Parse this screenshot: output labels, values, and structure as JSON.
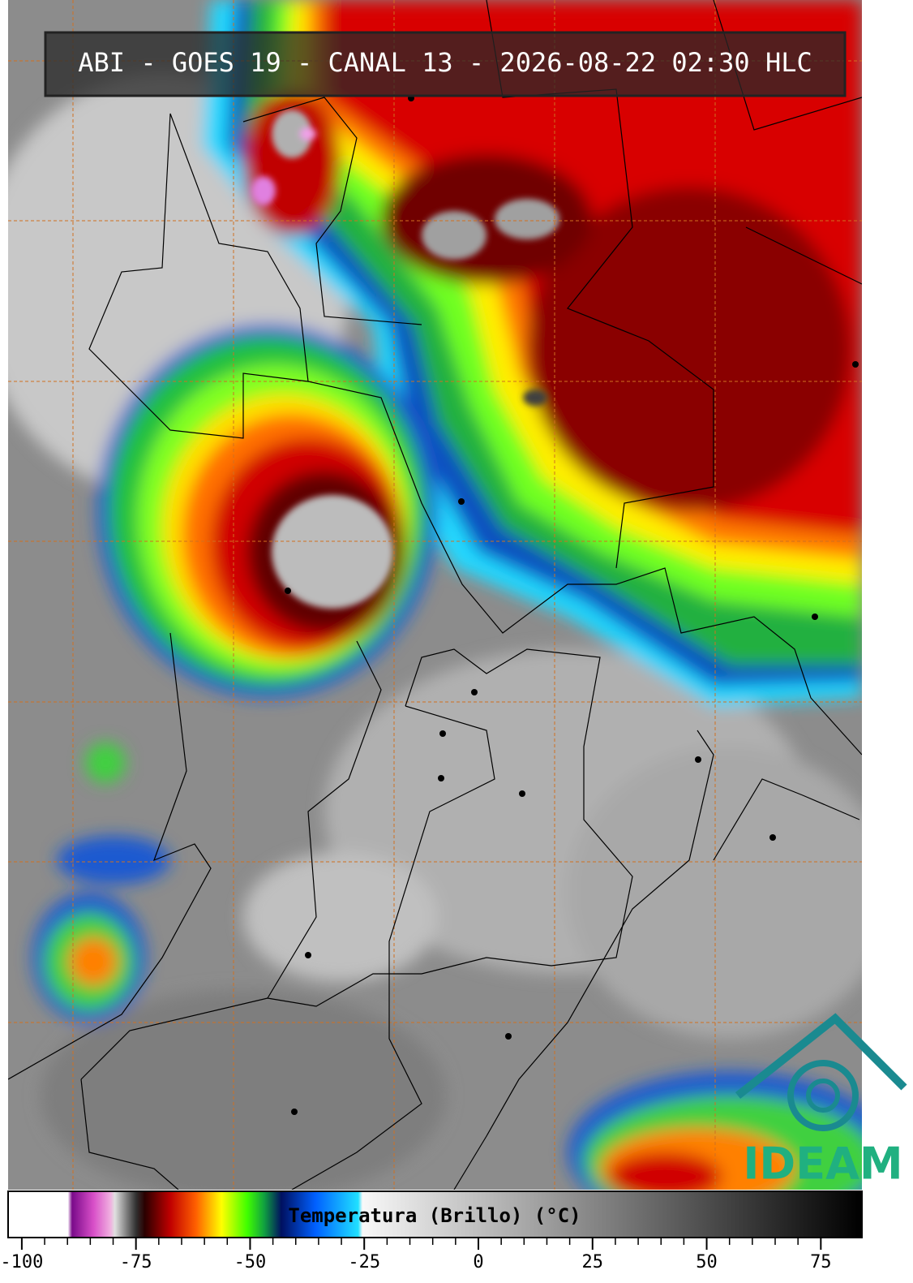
{
  "header": {
    "title": "ABI - GOES 19 - CANAL 13 - 2026-08-22 02:30 HLC"
  },
  "colorbar": {
    "label": "Temperatura (Brillo) (°C)",
    "lim": [
      -103,
      84
    ],
    "ticks": [
      -100,
      -75,
      -50,
      -25,
      0,
      25,
      50,
      75
    ]
  },
  "logo": {
    "text": "IDEAM"
  }
}
